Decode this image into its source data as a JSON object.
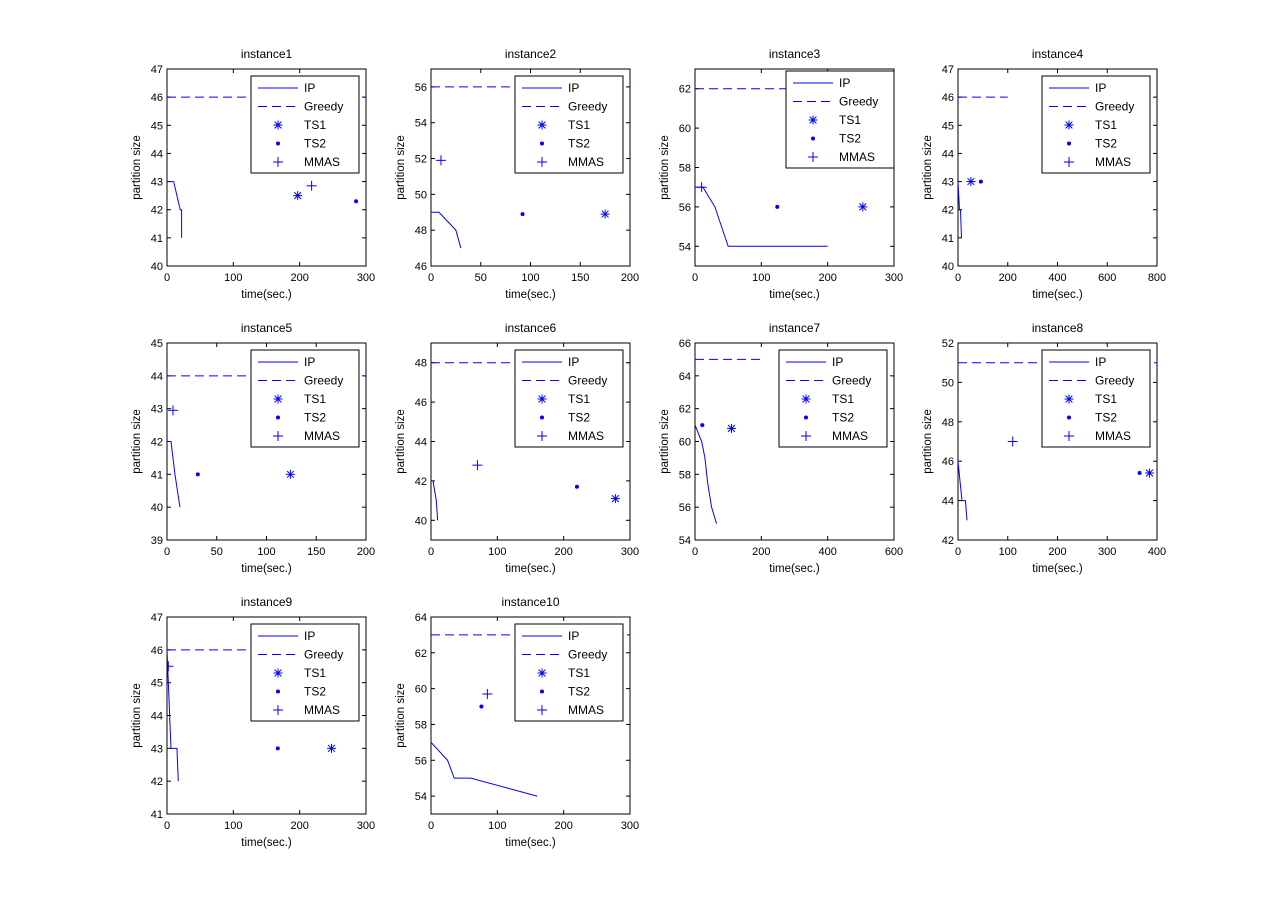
{
  "figure": {
    "background": "#ffffff",
    "series_color": "#0000ff"
  },
  "legend_entries": [
    {
      "name": "IP",
      "style": "solid-line"
    },
    {
      "name": "Greedy",
      "style": "dashed-line"
    },
    {
      "name": "TS1",
      "style": "asterisk-marker"
    },
    {
      "name": "TS2",
      "style": "dot-marker"
    },
    {
      "name": "MMAS",
      "style": "plus-marker"
    }
  ],
  "chart_data": [
    {
      "type": "line",
      "title": "instance1",
      "xlabel": "time(sec.)",
      "ylabel": "partition size",
      "xlim": [
        0,
        300
      ],
      "ylim": [
        40,
        47
      ],
      "xticks": [
        "0",
        "100",
        "200",
        "300"
      ],
      "yticks": [
        "40",
        "41",
        "42",
        "43",
        "44",
        "45",
        "46",
        "47"
      ],
      "series": [
        {
          "name": "IP",
          "style": "line",
          "x": [
            0,
            10,
            20,
            22,
            22
          ],
          "y": [
            43,
            43,
            42,
            42,
            41
          ]
        },
        {
          "name": "Greedy",
          "style": "dashed",
          "x": [
            0,
            300
          ],
          "y": [
            46,
            46
          ]
        },
        {
          "name": "TS1",
          "style": "asterisk",
          "x": [
            197
          ],
          "y": [
            42.5
          ]
        },
        {
          "name": "TS2",
          "style": "dot",
          "x": [
            285
          ],
          "y": [
            42.3
          ]
        },
        {
          "name": "MMAS",
          "style": "plus",
          "x": [
            218
          ],
          "y": [
            42.85
          ]
        }
      ]
    },
    {
      "type": "line",
      "title": "instance2",
      "xlabel": "time(sec.)",
      "ylabel": "partition size",
      "xlim": [
        0,
        200
      ],
      "ylim": [
        46,
        57
      ],
      "xticks": [
        "0",
        "50",
        "100",
        "150",
        "200"
      ],
      "yticks": [
        "46",
        "48",
        "50",
        "52",
        "54",
        "56"
      ],
      "series": [
        {
          "name": "IP",
          "style": "line",
          "x": [
            0,
            8,
            25,
            30
          ],
          "y": [
            49,
            49,
            48,
            47
          ]
        },
        {
          "name": "Greedy",
          "style": "dashed",
          "x": [
            0,
            200
          ],
          "y": [
            56,
            56
          ]
        },
        {
          "name": "TS1",
          "style": "asterisk",
          "x": [
            175
          ],
          "y": [
            48.9
          ]
        },
        {
          "name": "TS2",
          "style": "dot",
          "x": [
            92
          ],
          "y": [
            48.9
          ]
        },
        {
          "name": "MMAS",
          "style": "plus",
          "x": [
            10
          ],
          "y": [
            51.9
          ]
        }
      ]
    },
    {
      "type": "line",
      "title": "instance3",
      "xlabel": "time(sec.)",
      "ylabel": "partition size",
      "xlim": [
        0,
        300
      ],
      "ylim": [
        53,
        63
      ],
      "xticks": [
        "0",
        "100",
        "200",
        "300"
      ],
      "yticks": [
        "54",
        "56",
        "58",
        "60",
        "62"
      ],
      "series": [
        {
          "name": "IP",
          "style": "line",
          "x": [
            0,
            12,
            30,
            50,
            200
          ],
          "y": [
            57,
            57,
            56,
            54,
            54
          ]
        },
        {
          "name": "Greedy",
          "style": "dashed",
          "x": [
            0,
            300
          ],
          "y": [
            62,
            62
          ]
        },
        {
          "name": "TS1",
          "style": "asterisk",
          "x": [
            253
          ],
          "y": [
            56
          ]
        },
        {
          "name": "TS2",
          "style": "dot",
          "x": [
            124
          ],
          "y": [
            56
          ]
        },
        {
          "name": "MMAS",
          "style": "plus",
          "x": [
            10
          ],
          "y": [
            57
          ]
        }
      ]
    },
    {
      "type": "line",
      "title": "instance4",
      "xlabel": "time(sec.)",
      "ylabel": "partition size",
      "xlim": [
        0,
        800
      ],
      "ylim": [
        40,
        47
      ],
      "xticks": [
        "0",
        "200",
        "400",
        "600",
        "800"
      ],
      "yticks": [
        "40",
        "41",
        "42",
        "43",
        "44",
        "45",
        "46",
        "47"
      ],
      "series": [
        {
          "name": "IP",
          "style": "line",
          "x": [
            0,
            6,
            10,
            14
          ],
          "y": [
            43,
            42,
            42,
            41
          ]
        },
        {
          "name": "Greedy",
          "style": "dashed",
          "x": [
            0,
            200
          ],
          "y": [
            46,
            46
          ]
        },
        {
          "name": "TS1",
          "style": "asterisk",
          "x": [
            52
          ],
          "y": [
            43
          ]
        },
        {
          "name": "TS2",
          "style": "dot",
          "x": [
            92
          ],
          "y": [
            43
          ]
        },
        {
          "name": "MMAS",
          "style": "plus",
          "x": [],
          "y": []
        }
      ]
    },
    {
      "type": "line",
      "title": "instance5",
      "xlabel": "time(sec.)",
      "ylabel": "partition size",
      "xlim": [
        0,
        200
      ],
      "ylim": [
        39,
        45
      ],
      "xticks": [
        "0",
        "50",
        "100",
        "150",
        "200"
      ],
      "yticks": [
        "39",
        "40",
        "41",
        "42",
        "43",
        "44",
        "45"
      ],
      "series": [
        {
          "name": "IP",
          "style": "line",
          "x": [
            0,
            4,
            8,
            13
          ],
          "y": [
            42,
            42,
            41,
            40
          ]
        },
        {
          "name": "Greedy",
          "style": "dashed",
          "x": [
            0,
            200
          ],
          "y": [
            44,
            44
          ]
        },
        {
          "name": "TS1",
          "style": "asterisk",
          "x": [
            124
          ],
          "y": [
            41
          ]
        },
        {
          "name": "TS2",
          "style": "dot",
          "x": [
            31
          ],
          "y": [
            41
          ]
        },
        {
          "name": "MMAS",
          "style": "plus",
          "x": [
            6
          ],
          "y": [
            42.95
          ]
        }
      ]
    },
    {
      "type": "line",
      "title": "instance6",
      "xlabel": "time(sec.)",
      "ylabel": "partition size",
      "xlim": [
        0,
        300
      ],
      "ylim": [
        39,
        49
      ],
      "xticks": [
        "0",
        "100",
        "200",
        "300"
      ],
      "yticks": [
        "40",
        "42",
        "44",
        "46",
        "48"
      ],
      "series": [
        {
          "name": "IP",
          "style": "line",
          "x": [
            0,
            3,
            8,
            10
          ],
          "y": [
            42,
            42,
            41,
            40
          ]
        },
        {
          "name": "Greedy",
          "style": "dashed",
          "x": [
            0,
            300
          ],
          "y": [
            48,
            48
          ]
        },
        {
          "name": "TS1",
          "style": "asterisk",
          "x": [
            278
          ],
          "y": [
            41.1
          ]
        },
        {
          "name": "TS2",
          "style": "dot",
          "x": [
            220
          ],
          "y": [
            41.7
          ]
        },
        {
          "name": "MMAS",
          "style": "plus",
          "x": [
            70
          ],
          "y": [
            42.8
          ]
        }
      ]
    },
    {
      "type": "line",
      "title": "instance7",
      "xlabel": "time(sec.)",
      "ylabel": "partition size",
      "xlim": [
        0,
        600
      ],
      "ylim": [
        54,
        66
      ],
      "xticks": [
        "0",
        "200",
        "400",
        "600"
      ],
      "yticks": [
        "54",
        "56",
        "58",
        "60",
        "62",
        "64",
        "66"
      ],
      "series": [
        {
          "name": "IP",
          "style": "line",
          "x": [
            0,
            10,
            20,
            30,
            38,
            50,
            65
          ],
          "y": [
            61,
            60.5,
            60,
            59,
            57.5,
            56,
            55
          ]
        },
        {
          "name": "Greedy",
          "style": "dashed",
          "x": [
            0,
            200
          ],
          "y": [
            65,
            65
          ]
        },
        {
          "name": "TS1",
          "style": "asterisk",
          "x": [
            110
          ],
          "y": [
            60.8
          ]
        },
        {
          "name": "TS2",
          "style": "dot",
          "x": [
            22
          ],
          "y": [
            61
          ]
        },
        {
          "name": "MMAS",
          "style": "plus",
          "x": [],
          "y": []
        }
      ]
    },
    {
      "type": "line",
      "title": "instance8",
      "xlabel": "time(sec.)",
      "ylabel": "partition size",
      "xlim": [
        0,
        400
      ],
      "ylim": [
        42,
        52
      ],
      "xticks": [
        "0",
        "100",
        "200",
        "300",
        "400"
      ],
      "yticks": [
        "42",
        "44",
        "46",
        "48",
        "50",
        "52"
      ],
      "series": [
        {
          "name": "IP",
          "style": "line",
          "x": [
            0,
            4,
            8,
            15,
            18
          ],
          "y": [
            46,
            45,
            44,
            44,
            43
          ]
        },
        {
          "name": "Greedy",
          "style": "dashed",
          "x": [
            0,
            400
          ],
          "y": [
            51,
            51
          ]
        },
        {
          "name": "TS1",
          "style": "asterisk",
          "x": [
            385
          ],
          "y": [
            45.4
          ]
        },
        {
          "name": "TS2",
          "style": "dot",
          "x": [
            365
          ],
          "y": [
            45.4
          ]
        },
        {
          "name": "MMAS",
          "style": "plus",
          "x": [
            110
          ],
          "y": [
            47
          ]
        }
      ]
    },
    {
      "type": "line",
      "title": "instance9",
      "xlabel": "time(sec.)",
      "ylabel": "partition size",
      "xlim": [
        0,
        300
      ],
      "ylim": [
        41,
        47
      ],
      "xticks": [
        "0",
        "100",
        "200",
        "300"
      ],
      "yticks": [
        "41",
        "42",
        "43",
        "44",
        "45",
        "46",
        "47"
      ],
      "series": [
        {
          "name": "IP",
          "style": "line",
          "x": [
            0,
            2,
            4,
            6,
            15,
            17
          ],
          "y": [
            46,
            45,
            44,
            43,
            43,
            42
          ]
        },
        {
          "name": "Greedy",
          "style": "dashed",
          "x": [
            0,
            300
          ],
          "y": [
            46,
            46
          ]
        },
        {
          "name": "TS1",
          "style": "asterisk",
          "x": [
            248
          ],
          "y": [
            43
          ]
        },
        {
          "name": "TS2",
          "style": "dot",
          "x": [
            167
          ],
          "y": [
            43
          ]
        },
        {
          "name": "MMAS",
          "style": "plus",
          "x": [
            2
          ],
          "y": [
            45.5
          ]
        }
      ]
    },
    {
      "type": "line",
      "title": "instance10",
      "xlabel": "time(sec.)",
      "ylabel": "partition size",
      "xlim": [
        0,
        300
      ],
      "ylim": [
        53,
        64
      ],
      "xticks": [
        "0",
        "100",
        "200",
        "300"
      ],
      "yticks": [
        "54",
        "56",
        "58",
        "60",
        "62",
        "64"
      ],
      "series": [
        {
          "name": "IP",
          "style": "line",
          "x": [
            0,
            25,
            35,
            60,
            160
          ],
          "y": [
            57,
            56,
            55,
            55,
            54
          ]
        },
        {
          "name": "Greedy",
          "style": "dashed",
          "x": [
            0,
            300
          ],
          "y": [
            63,
            63
          ]
        },
        {
          "name": "TS1",
          "style": "asterisk",
          "x": [],
          "y": []
        },
        {
          "name": "TS2",
          "style": "dot",
          "x": [
            76
          ],
          "y": [
            59
          ]
        },
        {
          "name": "MMAS",
          "style": "plus",
          "x": [
            85
          ],
          "y": [
            59.7
          ]
        }
      ]
    }
  ]
}
